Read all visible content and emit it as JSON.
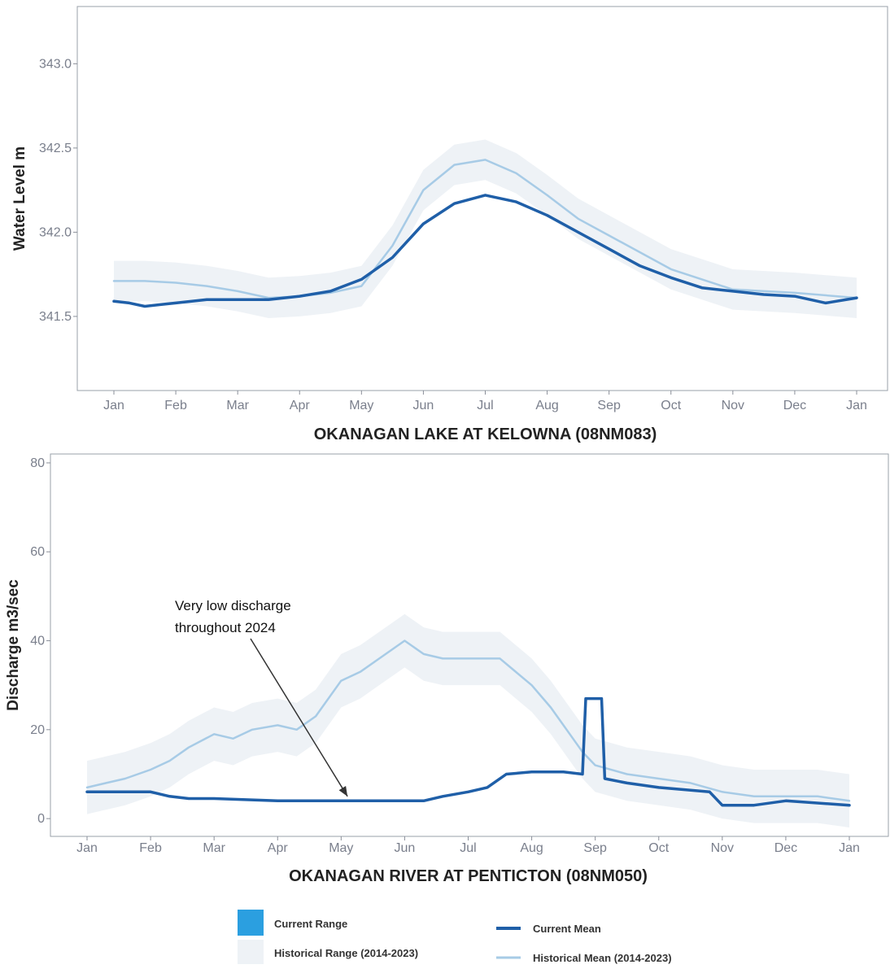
{
  "colors": {
    "current_mean": "#1f5fa8",
    "historical_mean": "#a7cbe6",
    "current_range": "#2b9fe0",
    "historical_range": "#eef2f6",
    "axis": "#8a8f99",
    "tick_text": "#7a7f8c"
  },
  "chart_data": [
    {
      "type": "line",
      "title": "OKANAGAN LAKE AT KELOWNA (08NM083)",
      "ylabel": "Water Level m",
      "xlabel": "",
      "x_ticks": [
        "Jan",
        "Feb",
        "Mar",
        "Apr",
        "May",
        "Jun",
        "Jul",
        "Aug",
        "Sep",
        "Oct",
        "Nov",
        "Dec",
        "Jan"
      ],
      "y_ticks": [
        341.5,
        342.0,
        342.5,
        343.0
      ],
      "ylim": [
        341.06,
        343.34
      ],
      "grid": false,
      "series": [
        {
          "name": "Historical Mean (2014-2023)",
          "x": [
            0,
            0.5,
            1,
            1.5,
            2,
            2.5,
            3,
            3.5,
            4,
            4.5,
            5,
            5.5,
            6,
            6.5,
            7,
            7.5,
            8,
            9,
            10,
            11,
            12
          ],
          "values": [
            341.71,
            341.71,
            341.7,
            341.68,
            341.65,
            341.61,
            341.62,
            341.64,
            341.68,
            341.92,
            342.25,
            342.4,
            342.43,
            342.35,
            342.22,
            342.08,
            341.98,
            341.78,
            341.66,
            341.64,
            341.61
          ]
        },
        {
          "name": "Current Mean",
          "x": [
            0,
            0.25,
            0.5,
            0.75,
            1,
            1.5,
            2,
            2.5,
            3,
            3.5,
            4,
            4.5,
            5,
            5.5,
            6,
            6.5,
            7,
            7.5,
            8,
            8.5,
            9,
            9.5,
            10,
            10.5,
            11,
            11.5,
            12
          ],
          "values": [
            341.59,
            341.58,
            341.56,
            341.57,
            341.58,
            341.6,
            341.6,
            341.6,
            341.62,
            341.65,
            341.72,
            341.85,
            342.05,
            342.17,
            342.22,
            342.18,
            342.1,
            342.0,
            341.9,
            341.8,
            341.73,
            341.67,
            341.65,
            341.63,
            341.62,
            341.58,
            341.61
          ]
        }
      ]
    },
    {
      "type": "line",
      "title": "OKANAGAN RIVER AT PENTICTON (08NM050)",
      "ylabel": "Discharge m3/sec",
      "xlabel": "",
      "x_ticks": [
        "Jan",
        "Feb",
        "Mar",
        "Apr",
        "May",
        "Jun",
        "Jul",
        "Aug",
        "Sep",
        "Oct",
        "Nov",
        "Dec",
        "Jan"
      ],
      "y_ticks": [
        0,
        20,
        40,
        60,
        80
      ],
      "ylim": [
        -4,
        82
      ],
      "grid": false,
      "annotation": {
        "text_line1": "Very low discharge",
        "text_line2": "throughout 2024",
        "points_to": [
          4.1,
          5
        ]
      },
      "series": [
        {
          "name": "Historical Mean (2014-2023)",
          "x": [
            0,
            0.3,
            0.6,
            1,
            1.3,
            1.6,
            2,
            2.3,
            2.6,
            3,
            3.3,
            3.6,
            4,
            4.3,
            4.6,
            5,
            5.3,
            5.6,
            6,
            6.5,
            7,
            7.3,
            7.6,
            7.8,
            8,
            8.5,
            9,
            9.5,
            10,
            10.5,
            11,
            11.5,
            12
          ],
          "values": [
            7,
            8,
            9,
            11,
            13,
            16,
            19,
            18,
            20,
            21,
            20,
            23,
            31,
            33,
            36,
            40,
            37,
            36,
            36,
            36,
            30,
            25,
            19,
            15,
            12,
            10,
            9,
            8,
            6,
            5,
            5,
            5,
            4
          ]
        },
        {
          "name": "Current Mean",
          "x": [
            0,
            1,
            1.3,
            1.6,
            2,
            3,
            4,
            5,
            5.3,
            5.6,
            6,
            6.3,
            6.6,
            7,
            7.5,
            7.8,
            7.85,
            8.1,
            8.15,
            8.5,
            9,
            9.8,
            10,
            10.5,
            11,
            12
          ],
          "values": [
            6,
            6,
            5,
            4.5,
            4.5,
            4,
            4,
            4,
            4,
            5,
            6,
            7,
            10,
            10.5,
            10.5,
            10,
            27,
            27,
            9,
            8,
            7,
            6,
            3,
            3,
            4,
            3
          ]
        }
      ]
    }
  ],
  "legend": {
    "items": [
      {
        "label": "Current Range"
      },
      {
        "label": "Historical Range (2014-2023)"
      },
      {
        "label": "Current Mean"
      },
      {
        "label": "Historical Mean (2014-2023)"
      }
    ]
  }
}
